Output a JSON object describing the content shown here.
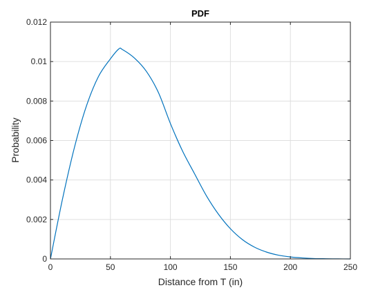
{
  "chart_data": {
    "type": "line",
    "title": "PDF",
    "xlabel": "Distance from T (in)",
    "ylabel": "Probability",
    "xlim": [
      0,
      250
    ],
    "ylim": [
      0,
      0.012
    ],
    "xticks": [
      0,
      50,
      100,
      150,
      200,
      250
    ],
    "yticks": [
      0,
      0.002,
      0.004,
      0.006,
      0.008,
      0.01,
      0.012
    ],
    "xtick_labels": [
      "0",
      "50",
      "100",
      "150",
      "200",
      "250"
    ],
    "ytick_labels": [
      "0",
      "0.002",
      "0.004",
      "0.006",
      "0.008",
      "0.01",
      "0.012"
    ],
    "grid": true,
    "series": [
      {
        "color": "#0072BD",
        "x": [
          0,
          10,
          20,
          30,
          40,
          50,
          57,
          60,
          70,
          80,
          90,
          100,
          110,
          120,
          130,
          140,
          150,
          160,
          170,
          180,
          190,
          200,
          210,
          220,
          230,
          240,
          250
        ],
        "y": [
          0,
          0.00302,
          0.00565,
          0.00775,
          0.00924,
          0.01014,
          0.01064,
          0.01061,
          0.01018,
          0.0095,
          0.00843,
          0.00686,
          0.00548,
          0.00433,
          0.0032,
          0.00227,
          0.00153,
          0.00098,
          0.0006,
          0.00035,
          0.00019,
          0.0001,
          5e-05,
          2e-05,
          1e-05,
          3e-06,
          1e-06
        ]
      }
    ]
  }
}
